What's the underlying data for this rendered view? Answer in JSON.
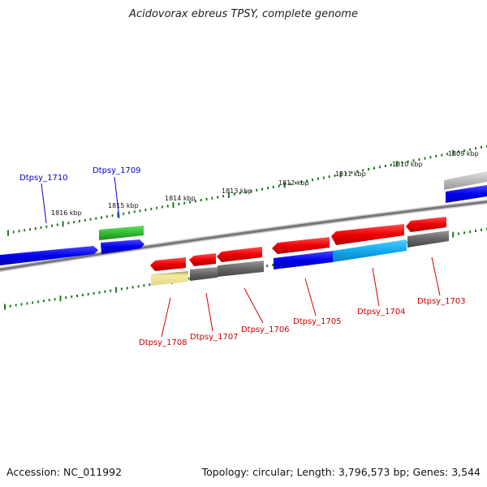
{
  "title": "Acidovorax ebreus TPSY, complete genome",
  "footer": {
    "accession": "Accession: NC_011992",
    "summary": "Topology: circular; Length: 3,796,573 bp; Genes: 3,544"
  },
  "scale": {
    "labels": [
      "1816 kbp",
      "1815 kbp",
      "1814 kbp",
      "1813 kbp",
      "1812 kbp",
      "1811 kbp",
      "1810 kbp",
      "1809 kbp"
    ]
  },
  "genes": [
    {
      "name": "Dtpsy_1710",
      "color": "#0000cc"
    },
    {
      "name": "Dtpsy_1709",
      "color": "#0000cc"
    },
    {
      "name": "Dtpsy_1708",
      "color": "#cc0000"
    },
    {
      "name": "Dtpsy_1707",
      "color": "#cc0000"
    },
    {
      "name": "Dtpsy_1706",
      "color": "#cc0000"
    },
    {
      "name": "Dtpsy_1705",
      "color": "#cc0000"
    },
    {
      "name": "Dtpsy_1704",
      "color": "#cc0000"
    },
    {
      "name": "Dtpsy_1703",
      "color": "#cc0000"
    }
  ],
  "colors": {
    "forward_cds": "#0000ee",
    "reverse_cds": "#ee0000",
    "rna_green": "#33bb33",
    "highlight_cyan": "#11aaee",
    "grey_feature": "#666666",
    "pale_yellow": "#eedd88",
    "tick_green": "#227722",
    "backbone": "#888888"
  }
}
